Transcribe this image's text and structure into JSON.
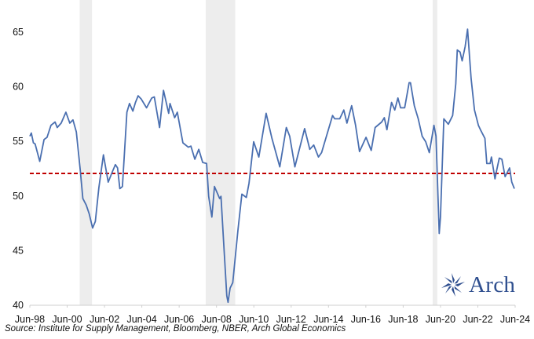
{
  "chart_data": {
    "type": "line",
    "title": "",
    "xlabel": "",
    "ylabel": "",
    "ylim": [
      40,
      65
    ],
    "xlim": [
      1998.5,
      2024.5
    ],
    "yticks": [
      40,
      45,
      50,
      55,
      60,
      65
    ],
    "xticks": [
      {
        "x": 1998.5,
        "label": "Jun-98"
      },
      {
        "x": 2000.5,
        "label": "Jun-00"
      },
      {
        "x": 2002.5,
        "label": "Jun-02"
      },
      {
        "x": 2004.5,
        "label": "Jun-04"
      },
      {
        "x": 2006.5,
        "label": "Jun-06"
      },
      {
        "x": 2008.5,
        "label": "Jun-08"
      },
      {
        "x": 2010.5,
        "label": "Jun-10"
      },
      {
        "x": 2012.5,
        "label": "Jun-12"
      },
      {
        "x": 2014.5,
        "label": "Jun-14"
      },
      {
        "x": 2016.5,
        "label": "Jun-16"
      },
      {
        "x": 2018.5,
        "label": "Jun-18"
      },
      {
        "x": 2020.5,
        "label": "Jun-20"
      },
      {
        "x": 2022.5,
        "label": "Jun-22"
      },
      {
        "x": 2024.5,
        "label": "Jun-24"
      }
    ],
    "grid": false,
    "reference_line": {
      "value": 52,
      "color": "#c00000",
      "style": "dashed"
    },
    "recessions": [
      [
        2001.17,
        2001.83
      ],
      [
        2007.92,
        2009.5
      ],
      [
        2020.08,
        2020.33
      ]
    ],
    "series": [
      {
        "name": "Index",
        "color": "#4a6fb0",
        "points": [
          [
            1998.5,
            55.4
          ],
          [
            1998.58,
            55.7
          ],
          [
            1998.69,
            54.8
          ],
          [
            1998.78,
            54.7
          ],
          [
            1999.03,
            53.1
          ],
          [
            1999.26,
            55.1
          ],
          [
            1999.42,
            55.3
          ],
          [
            1999.63,
            56.4
          ],
          [
            1999.85,
            56.7
          ],
          [
            1999.97,
            56.2
          ],
          [
            2000.18,
            56.6
          ],
          [
            2000.43,
            57.6
          ],
          [
            2000.64,
            56.6
          ],
          [
            2000.81,
            56.9
          ],
          [
            2000.99,
            55.8
          ],
          [
            2001.2,
            52.3
          ],
          [
            2001.34,
            49.7
          ],
          [
            2001.52,
            49.1
          ],
          [
            2001.68,
            48.3
          ],
          [
            2001.86,
            47.0
          ],
          [
            2002.01,
            47.6
          ],
          [
            2002.2,
            50.7
          ],
          [
            2002.44,
            53.7
          ],
          [
            2002.7,
            51.2
          ],
          [
            2002.91,
            52.1
          ],
          [
            2003.08,
            52.8
          ],
          [
            2003.2,
            52.5
          ],
          [
            2003.32,
            50.6
          ],
          [
            2003.46,
            50.8
          ],
          [
            2003.7,
            57.6
          ],
          [
            2003.84,
            58.4
          ],
          [
            2004.02,
            57.7
          ],
          [
            2004.16,
            58.5
          ],
          [
            2004.3,
            59.1
          ],
          [
            2004.47,
            58.8
          ],
          [
            2004.75,
            58.0
          ],
          [
            2005.03,
            58.9
          ],
          [
            2005.17,
            59.0
          ],
          [
            2005.45,
            56.2
          ],
          [
            2005.66,
            59.6
          ],
          [
            2005.94,
            57.5
          ],
          [
            2006.01,
            58.4
          ],
          [
            2006.26,
            57.1
          ],
          [
            2006.4,
            57.6
          ],
          [
            2006.7,
            54.8
          ],
          [
            2006.99,
            54.4
          ],
          [
            2007.13,
            54.5
          ],
          [
            2007.34,
            53.3
          ],
          [
            2007.55,
            54.2
          ],
          [
            2007.76,
            53.0
          ],
          [
            2007.97,
            52.9
          ],
          [
            2008.08,
            49.9
          ],
          [
            2008.25,
            48.0
          ],
          [
            2008.39,
            50.8
          ],
          [
            2008.67,
            49.7
          ],
          [
            2008.74,
            49.9
          ],
          [
            2008.88,
            45.8
          ],
          [
            2009.05,
            40.8
          ],
          [
            2009.12,
            40.2
          ],
          [
            2009.23,
            41.5
          ],
          [
            2009.37,
            42.0
          ],
          [
            2009.65,
            46.8
          ],
          [
            2009.86,
            50.1
          ],
          [
            2010.1,
            49.8
          ],
          [
            2010.24,
            51.1
          ],
          [
            2010.49,
            54.9
          ],
          [
            2010.77,
            53.5
          ],
          [
            2011.16,
            57.5
          ],
          [
            2011.47,
            55.2
          ],
          [
            2011.89,
            52.6
          ],
          [
            2012.24,
            56.2
          ],
          [
            2012.42,
            55.4
          ],
          [
            2012.7,
            52.6
          ],
          [
            2013.22,
            56.1
          ],
          [
            2013.5,
            54.2
          ],
          [
            2013.71,
            54.6
          ],
          [
            2013.96,
            53.5
          ],
          [
            2014.13,
            53.9
          ],
          [
            2014.72,
            57.3
          ],
          [
            2014.83,
            57.0
          ],
          [
            2015.1,
            57.0
          ],
          [
            2015.32,
            57.8
          ],
          [
            2015.49,
            56.6
          ],
          [
            2015.74,
            58.2
          ],
          [
            2015.95,
            56.4
          ],
          [
            2016.16,
            54.0
          ],
          [
            2016.51,
            55.3
          ],
          [
            2016.79,
            54.1
          ],
          [
            2017.0,
            56.2
          ],
          [
            2017.35,
            56.7
          ],
          [
            2017.49,
            57.1
          ],
          [
            2017.63,
            56.0
          ],
          [
            2017.88,
            58.5
          ],
          [
            2018.05,
            57.8
          ],
          [
            2018.22,
            58.9
          ],
          [
            2018.36,
            58.0
          ],
          [
            2018.58,
            58.0
          ],
          [
            2018.82,
            60.3
          ],
          [
            2018.89,
            60.3
          ],
          [
            2019.1,
            58.2
          ],
          [
            2019.31,
            57.0
          ],
          [
            2019.52,
            55.4
          ],
          [
            2019.71,
            54.9
          ],
          [
            2019.9,
            53.9
          ],
          [
            2020.15,
            56.4
          ],
          [
            2020.26,
            55.4
          ],
          [
            2020.43,
            46.5
          ],
          [
            2020.5,
            48.0
          ],
          [
            2020.68,
            57.0
          ],
          [
            2020.92,
            56.5
          ],
          [
            2021.15,
            57.3
          ],
          [
            2021.32,
            60.2
          ],
          [
            2021.4,
            63.3
          ],
          [
            2021.55,
            63.1
          ],
          [
            2021.66,
            62.3
          ],
          [
            2021.82,
            63.6
          ],
          [
            2021.95,
            65.2
          ],
          [
            2022.14,
            60.7
          ],
          [
            2022.32,
            57.8
          ],
          [
            2022.53,
            56.4
          ],
          [
            2022.67,
            55.9
          ],
          [
            2022.88,
            55.2
          ],
          [
            2022.98,
            52.9
          ],
          [
            2023.16,
            52.9
          ],
          [
            2023.23,
            53.5
          ],
          [
            2023.42,
            51.5
          ],
          [
            2023.51,
            52.3
          ],
          [
            2023.65,
            53.4
          ],
          [
            2023.79,
            53.3
          ],
          [
            2023.96,
            51.7
          ],
          [
            2024.2,
            52.5
          ],
          [
            2024.32,
            51.2
          ],
          [
            2024.46,
            50.6
          ]
        ]
      }
    ]
  },
  "source_text": "Source: Institute for Supply Management, Bloomberg, NBER, Arch Global Economics",
  "logo": {
    "text": "Arch",
    "color": "#2f4f8f"
  }
}
